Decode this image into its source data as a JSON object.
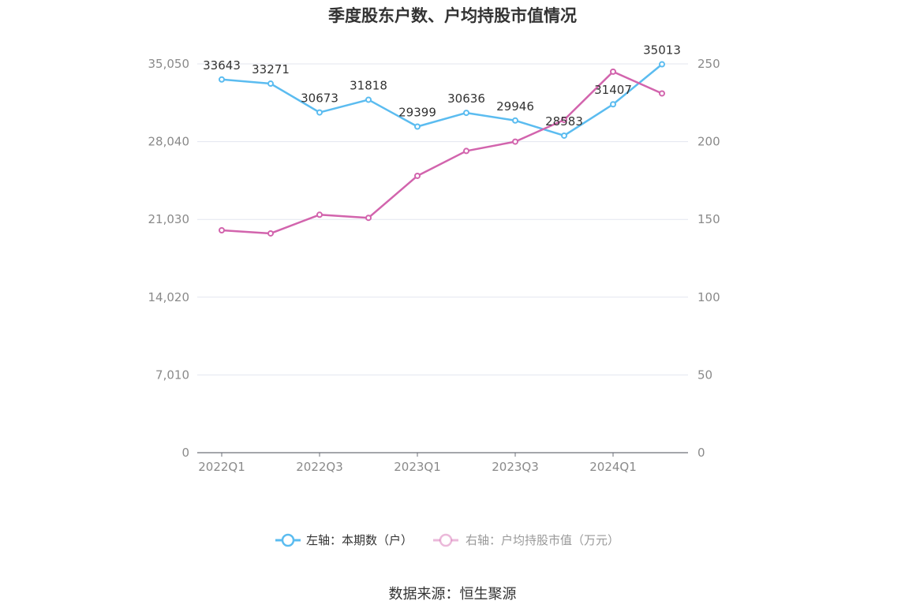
{
  "chart_data": {
    "type": "line",
    "title": "季度股东户数、户均持股市值情况",
    "categories": [
      "2022Q1",
      "2022Q2",
      "2022Q3",
      "2022Q4",
      "2023Q1",
      "2023Q2",
      "2023Q3",
      "2023Q4",
      "2024Q1",
      "2024Q2"
    ],
    "x_tick_labels": [
      "2022Q1",
      "2022Q3",
      "2023Q1",
      "2023Q3",
      "2024Q1"
    ],
    "left_axis": {
      "ticks": [
        "0",
        "7,010",
        "14,020",
        "21,030",
        "28,040",
        "35,050"
      ],
      "ylim": [
        0,
        35050
      ]
    },
    "right_axis": {
      "ticks": [
        "0",
        "50",
        "100",
        "150",
        "200",
        "250"
      ],
      "ylim": [
        0,
        250
      ]
    },
    "grid": true,
    "legend_position": "bottom",
    "series": [
      {
        "name": "左轴：本期数（户）",
        "axis": "left",
        "color": "#5bbcf0",
        "values": [
          33643,
          33271,
          30673,
          31818,
          29399,
          30636,
          29946,
          28583,
          31407,
          35013
        ],
        "data_labels": [
          "33643",
          "33271",
          "30673",
          "31818",
          "29399",
          "30636",
          "29946",
          "28583",
          "31407",
          "35013"
        ]
      },
      {
        "name": "右轴：户均持股市值（万元）",
        "axis": "right",
        "color": "#d264ad",
        "values": [
          143,
          141,
          153,
          151,
          178,
          194,
          200,
          214,
          245,
          231
        ]
      }
    ]
  },
  "source": "数据来源：恒生聚源"
}
